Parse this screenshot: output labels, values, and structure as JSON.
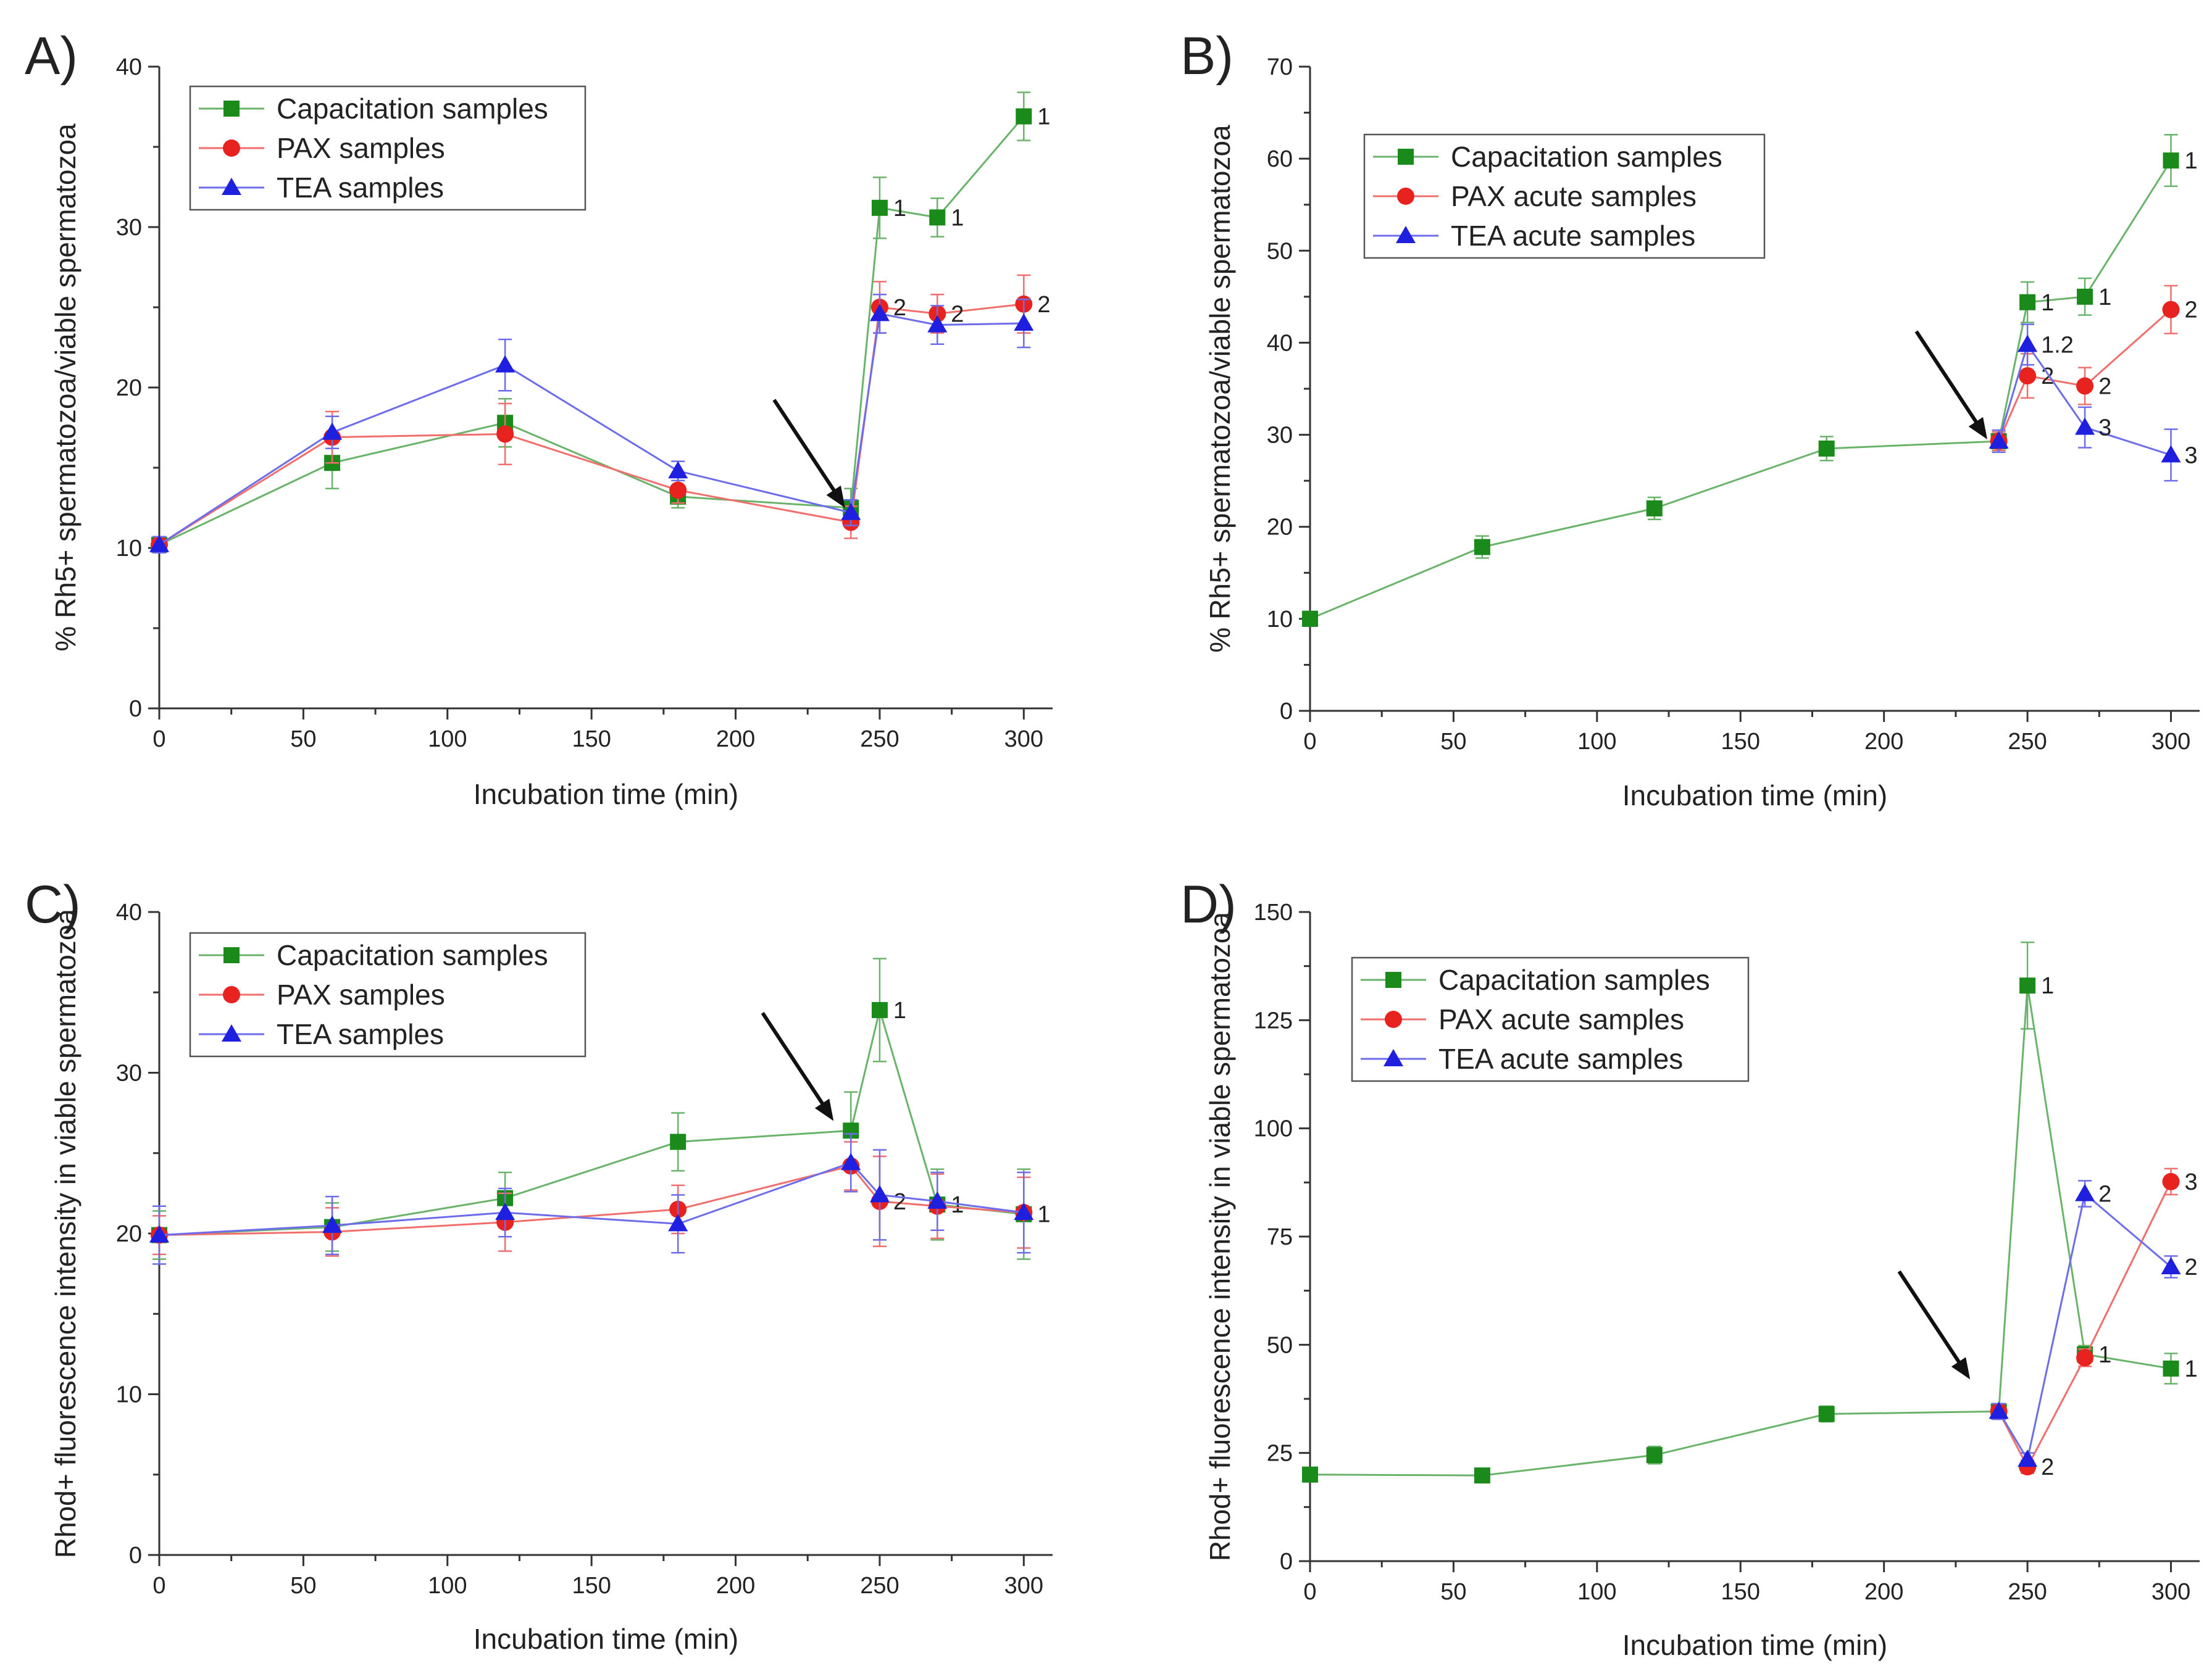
{
  "figure": {
    "panels": [
      "A)",
      "B)",
      "C)",
      "D)"
    ]
  },
  "chart_data": [
    {
      "panel": "A)",
      "type": "line",
      "xlabel": "Incubation time (min)",
      "ylabel": "% Rh5+ spermatozoa/viable spermatozoa",
      "xlim": [
        0,
        310
      ],
      "ylim": [
        0,
        40
      ],
      "xticks": [
        0,
        50,
        100,
        150,
        200,
        250,
        300
      ],
      "yticks": [
        0,
        10,
        20,
        30,
        40
      ],
      "legend_position": "top-left",
      "arrow_at": [
        238,
        12.5
      ],
      "x": [
        0,
        60,
        120,
        180,
        240,
        250,
        270,
        300
      ],
      "series": [
        {
          "name": "Capacitation samples",
          "color": "#1a8a1a",
          "marker": "square",
          "values": [
            10.2,
            15.3,
            17.8,
            13.2,
            12.5,
            31.2,
            30.6,
            36.9
          ],
          "errors": [
            0.5,
            1.6,
            1.5,
            0.7,
            1.2,
            1.9,
            1.2,
            1.5
          ],
          "labels": [
            "",
            "",
            "",
            "",
            "",
            "1",
            "1",
            "1"
          ]
        },
        {
          "name": "PAX samples",
          "color": "#e8221f",
          "marker": "circle",
          "values": [
            10.2,
            16.9,
            17.1,
            13.6,
            11.6,
            25.0,
            24.6,
            25.2
          ],
          "errors": [
            0.5,
            1.6,
            1.9,
            0.8,
            1.0,
            1.6,
            1.2,
            1.8
          ],
          "labels": [
            "",
            "",
            "",
            "",
            "",
            "2",
            "2",
            "2"
          ]
        },
        {
          "name": "TEA samples",
          "color": "#1f1fe0",
          "marker": "triangle",
          "values": [
            10.2,
            17.2,
            21.4,
            14.8,
            12.2,
            24.6,
            23.9,
            24.0
          ],
          "errors": [
            0.5,
            1.0,
            1.6,
            0.6,
            0.8,
            1.2,
            1.2,
            1.5
          ],
          "labels": [
            "",
            "",
            "",
            "",
            "",
            "",
            "",
            ""
          ]
        }
      ]
    },
    {
      "panel": "B)",
      "type": "line",
      "xlabel": "Incubation time (min)",
      "ylabel": "% Rh5+ spermatozoa/viable spermatozoa",
      "xlim": [
        0,
        310
      ],
      "ylim": [
        0,
        70
      ],
      "xticks": [
        0,
        50,
        100,
        150,
        200,
        250,
        300
      ],
      "yticks": [
        0,
        10,
        20,
        30,
        40,
        50,
        60,
        70
      ],
      "legend_position": "top-left",
      "arrow_at": [
        236,
        29.5
      ],
      "series": [
        {
          "name": "Capacitation samples",
          "color": "#1a8a1a",
          "marker": "square",
          "x": [
            0,
            60,
            120,
            180,
            240,
            250,
            270,
            300
          ],
          "values": [
            10.0,
            17.8,
            22.0,
            28.5,
            29.3,
            44.4,
            45.0,
            59.8
          ],
          "errors": [
            0.8,
            1.2,
            1.2,
            1.3,
            1.0,
            2.2,
            2.0,
            2.8
          ],
          "labels": [
            "",
            "",
            "",
            "",
            "",
            "1",
            "1",
            "1"
          ]
        },
        {
          "name": "PAX acute samples",
          "color": "#e8221f",
          "marker": "circle",
          "x": [
            240,
            250,
            270,
            300
          ],
          "values": [
            29.3,
            36.4,
            35.3,
            43.6
          ],
          "errors": [
            1.0,
            2.4,
            2.0,
            2.6
          ],
          "labels": [
            "",
            "2",
            "2",
            "2"
          ]
        },
        {
          "name": "TEA acute samples",
          "color": "#1f1fe0",
          "marker": "triangle",
          "x": [
            240,
            250,
            270,
            300
          ],
          "values": [
            29.3,
            39.8,
            30.8,
            27.8
          ],
          "errors": [
            1.2,
            2.2,
            2.2,
            2.8
          ],
          "labels": [
            "",
            "1.2",
            "3",
            "3"
          ]
        }
      ]
    },
    {
      "panel": "C)",
      "type": "line",
      "xlabel": "Incubation time (min)",
      "ylabel": "Rhod+ fluorescence intensity in viable spermatozoa",
      "xlim": [
        0,
        310
      ],
      "ylim": [
        0,
        40
      ],
      "xticks": [
        0,
        50,
        100,
        150,
        200,
        250,
        300
      ],
      "yticks": [
        0,
        10,
        20,
        30,
        40
      ],
      "legend_position": "top-left",
      "arrow_at": [
        234,
        27.0
      ],
      "x": [
        0,
        60,
        120,
        180,
        240,
        250,
        270,
        300
      ],
      "series": [
        {
          "name": "Capacitation samples",
          "color": "#1a8a1a",
          "marker": "square",
          "values": [
            19.9,
            20.4,
            22.2,
            25.7,
            26.4,
            33.9,
            21.8,
            21.2
          ],
          "errors": [
            1.5,
            1.5,
            1.6,
            1.8,
            2.4,
            3.2,
            2.2,
            2.8
          ],
          "labels": [
            "",
            "",
            "",
            "",
            "",
            "1",
            "1",
            "1"
          ]
        },
        {
          "name": "PAX samples",
          "color": "#e8221f",
          "marker": "circle",
          "values": [
            19.9,
            20.1,
            20.7,
            21.5,
            24.2,
            22.0,
            21.7,
            21.3
          ],
          "errors": [
            1.2,
            1.5,
            1.8,
            1.5,
            1.5,
            2.8,
            2.0,
            2.2
          ],
          "labels": [
            "",
            "",
            "",
            "",
            "",
            "2",
            "",
            ""
          ]
        },
        {
          "name": "TEA samples",
          "color": "#1f1fe0",
          "marker": "triangle",
          "values": [
            19.9,
            20.5,
            21.3,
            20.6,
            24.4,
            22.4,
            22.0,
            21.3
          ],
          "errors": [
            1.8,
            1.8,
            1.5,
            1.8,
            1.8,
            2.8,
            1.8,
            2.5
          ],
          "labels": [
            "",
            "",
            "",
            "",
            "",
            "",
            "",
            ""
          ]
        }
      ]
    },
    {
      "panel": "D)",
      "type": "line",
      "xlabel": "Incubation time (min)",
      "ylabel": "Rhod+ fluorescence intensity in viable spermatozoa",
      "xlim": [
        0,
        310
      ],
      "ylim": [
        0,
        150
      ],
      "xticks": [
        0,
        50,
        100,
        150,
        200,
        250,
        300
      ],
      "yticks": [
        0,
        25,
        50,
        75,
        100,
        125,
        150
      ],
      "legend_position": "top-left",
      "arrow_at": [
        230,
        42.0
      ],
      "series": [
        {
          "name": "Capacitation samples",
          "color": "#1a8a1a",
          "marker": "square",
          "x": [
            0,
            60,
            120,
            180,
            240,
            250,
            270,
            300
          ],
          "values": [
            20.0,
            19.8,
            24.5,
            34.0,
            34.6,
            133.0,
            47.8,
            44.5
          ],
          "errors": [
            1.5,
            1.2,
            2.0,
            1.8,
            1.8,
            10.0,
            2.0,
            3.5
          ],
          "labels": [
            "",
            "",
            "",
            "",
            "",
            "1",
            "1",
            "1"
          ]
        },
        {
          "name": "PAX acute samples",
          "color": "#e8221f",
          "marker": "circle",
          "x": [
            240,
            250,
            270,
            300
          ],
          "values": [
            34.6,
            21.8,
            47.0,
            87.7
          ],
          "errors": [
            1.8,
            1.5,
            2.0,
            3.0
          ],
          "labels": [
            "",
            "2",
            "",
            "3"
          ]
        },
        {
          "name": "TEA acute samples",
          "color": "#1f1fe0",
          "marker": "triangle",
          "x": [
            240,
            250,
            270,
            300
          ],
          "values": [
            34.6,
            23.5,
            84.9,
            68.0
          ],
          "errors": [
            1.8,
            1.5,
            3.0,
            2.5
          ],
          "labels": [
            "",
            "",
            "2",
            "2"
          ]
        }
      ]
    }
  ]
}
